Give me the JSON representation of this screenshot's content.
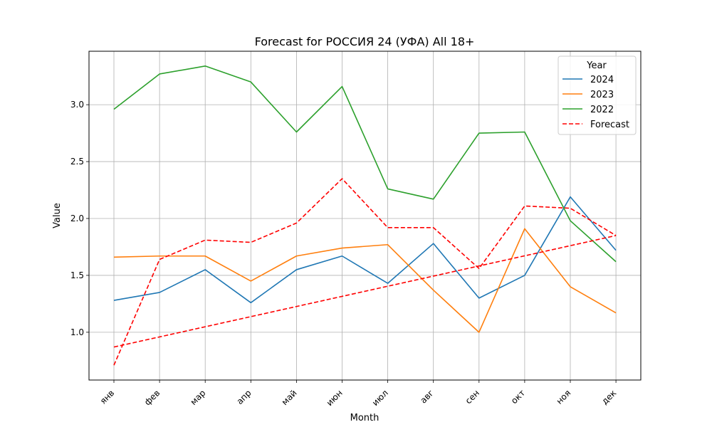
{
  "chart_data": {
    "type": "line",
    "title": "Forecast for РОССИЯ 24 (УФА) All 18+",
    "xlabel": "Month",
    "ylabel": "Value",
    "categories": [
      "янв",
      "фев",
      "мар",
      "апр",
      "май",
      "июн",
      "июл",
      "авг",
      "сен",
      "окт",
      "ноя",
      "дек"
    ],
    "ylim": [
      0.58,
      3.47
    ],
    "yticks": [
      1.0,
      1.5,
      2.0,
      2.5,
      3.0
    ],
    "ytick_labels": [
      "1.0",
      "1.5",
      "2.0",
      "2.5",
      "3.0"
    ],
    "grid": true,
    "legend": {
      "title": "Year",
      "placement": "top-right"
    },
    "series": [
      {
        "name": "2024",
        "color": "#1f77b4",
        "style": "solid",
        "values": [
          1.28,
          1.35,
          1.55,
          1.26,
          1.55,
          1.67,
          1.43,
          1.78,
          1.3,
          1.5,
          2.19,
          1.72
        ]
      },
      {
        "name": "2023",
        "color": "#ff7f0e",
        "style": "solid",
        "values": [
          1.66,
          1.67,
          1.67,
          1.45,
          1.67,
          1.74,
          1.77,
          1.37,
          1.0,
          1.91,
          1.4,
          1.17
        ]
      },
      {
        "name": "2022",
        "color": "#2ca02c",
        "style": "solid",
        "values": [
          2.96,
          3.27,
          3.34,
          3.2,
          2.76,
          3.16,
          2.26,
          2.17,
          2.75,
          2.76,
          1.98,
          1.62
        ]
      },
      {
        "name": "Forecast",
        "color": "#ff0000",
        "style": "dashed",
        "values": [
          0.71,
          1.64,
          1.81,
          1.79,
          1.96,
          2.35,
          1.92,
          1.92,
          1.56,
          2.11,
          2.09,
          1.85
        ]
      }
    ],
    "trend": {
      "color": "#ff0000",
      "style": "dashed",
      "values": [
        0.87,
        1.85
      ]
    }
  }
}
